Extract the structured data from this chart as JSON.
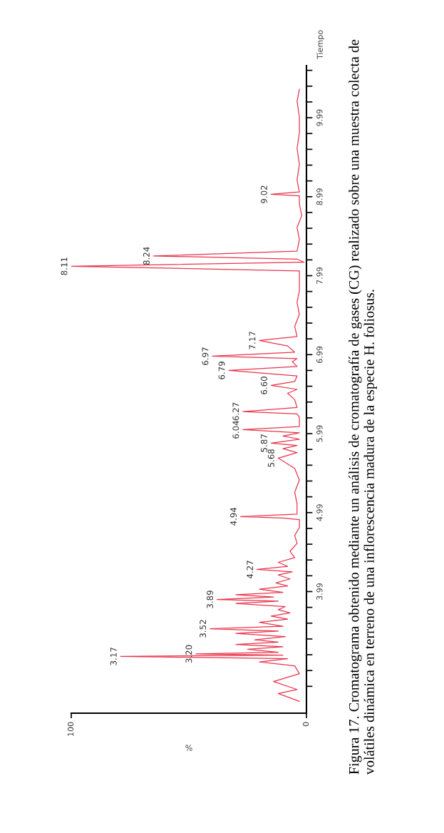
{
  "chart_data": {
    "type": "line",
    "orientation": "horizontal",
    "xlabel": "%",
    "ylabel": "Tiempo",
    "x": [
      2.6,
      2.7,
      2.75,
      2.85,
      2.95,
      3.05,
      3.1,
      3.14,
      3.17,
      3.185,
      3.2,
      3.22,
      3.26,
      3.29,
      3.32,
      3.35,
      3.38,
      3.42,
      3.46,
      3.49,
      3.52,
      3.55,
      3.6,
      3.64,
      3.68,
      3.72,
      3.76,
      3.8,
      3.84,
      3.87,
      3.89,
      3.92,
      3.95,
      3.98,
      4.02,
      4.06,
      4.1,
      4.15,
      4.2,
      4.24,
      4.27,
      4.31,
      4.36,
      4.42,
      4.5,
      4.6,
      4.7,
      4.8,
      4.9,
      4.92,
      4.94,
      4.97,
      5.1,
      5.25,
      5.4,
      5.55,
      5.68,
      5.75,
      5.8,
      5.84,
      5.87,
      5.92,
      5.96,
      6.0,
      6.04,
      6.08,
      6.12,
      6.2,
      6.24,
      6.27,
      6.32,
      6.42,
      6.5,
      6.55,
      6.6,
      6.65,
      6.72,
      6.79,
      6.84,
      6.9,
      6.94,
      6.97,
      7.02,
      7.1,
      7.17,
      7.22,
      7.35,
      7.5,
      7.65,
      7.8,
      7.95,
      8.05,
      8.11,
      8.16,
      8.2,
      8.24,
      8.3,
      8.45,
      8.6,
      8.75,
      8.9,
      9.0,
      9.02,
      9.05,
      9.2,
      9.4,
      9.6,
      9.8,
      10.0,
      10.2,
      10.35
    ],
    "series": [
      {
        "color": "#e8344c",
        "values": [
          3,
          12,
          4,
          14,
          3,
          5,
          20,
          8,
          79,
          10,
          47,
          12,
          25,
          10,
          30,
          12,
          22,
          9,
          30,
          12,
          41,
          10,
          20,
          8,
          15,
          7,
          12,
          9,
          30,
          12,
          38,
          14,
          30,
          10,
          20,
          8,
          13,
          7,
          12,
          6,
          21,
          8,
          12,
          5,
          7,
          4,
          5,
          3,
          3,
          10,
          28,
          4,
          4,
          5,
          3,
          5,
          12,
          4,
          10,
          4,
          15,
          3,
          10,
          3,
          27,
          3,
          3,
          3,
          4,
          27,
          4,
          5,
          8,
          4,
          15,
          5,
          4,
          33,
          4,
          6,
          4,
          40,
          5,
          8,
          20,
          4,
          5,
          3,
          4,
          3,
          3,
          3,
          100,
          1,
          4,
          65,
          4,
          3,
          4,
          2,
          3,
          3,
          15,
          3,
          4,
          3,
          4,
          3,
          3,
          4,
          3
        ]
      }
    ],
    "xlim": [
      100,
      0
    ],
    "xticks": [
      0,
      100
    ],
    "ylim": [
      2.45,
      10.65
    ],
    "yticks": [
      {
        "value": 2.79,
        "label": null
      },
      {
        "value": 2.99,
        "label": null
      },
      {
        "value": 3.19,
        "label": null
      },
      {
        "value": 3.39,
        "label": null
      },
      {
        "value": 3.59,
        "label": null
      },
      {
        "value": 3.79,
        "label": null
      },
      3.99,
      {
        "value": 4.19,
        "label": null
      },
      {
        "value": 4.39,
        "label": null
      },
      {
        "value": 4.59,
        "label": null
      },
      {
        "value": 4.79,
        "label": null
      },
      4.99,
      {
        "value": 5.19,
        "label": null
      },
      {
        "value": 5.39,
        "label": null
      },
      {
        "value": 5.59,
        "label": null
      },
      {
        "value": 5.79,
        "label": null
      },
      5.99,
      {
        "value": 6.19,
        "label": null
      },
      {
        "value": 6.39,
        "label": null
      },
      {
        "value": 6.59,
        "label": null
      },
      {
        "value": 6.79,
        "label": null
      },
      6.99,
      {
        "value": 7.19,
        "label": null
      },
      {
        "value": 7.39,
        "label": null
      },
      {
        "value": 7.59,
        "label": null
      },
      {
        "value": 7.79,
        "label": null
      },
      7.99,
      {
        "value": 8.19,
        "label": null
      },
      {
        "value": 8.39,
        "label": null
      },
      {
        "value": 8.59,
        "label": null
      },
      {
        "value": 8.79,
        "label": null
      },
      8.99,
      {
        "value": 9.19,
        "label": null
      },
      {
        "value": 9.39,
        "label": null
      },
      {
        "value": 9.59,
        "label": null
      },
      {
        "value": 9.79,
        "label": null
      },
      9.99,
      {
        "value": 10.19,
        "label": null
      },
      {
        "value": 10.39,
        "label": null
      },
      {
        "value": 10.59,
        "label": null
      }
    ],
    "marker": "none",
    "line_style": "solid",
    "annotations": [
      {
        "text": "3.17",
        "x": 79,
        "y": 3.17
      },
      {
        "text": "3.20",
        "x": 47,
        "y": 3.2
      },
      {
        "text": "3.52",
        "x": 41,
        "y": 3.52
      },
      {
        "text": "3.89",
        "x": 38,
        "y": 3.89
      },
      {
        "text": "4.27",
        "x": 21,
        "y": 4.27
      },
      {
        "text": "4.94",
        "x": 28,
        "y": 4.94
      },
      {
        "text": "5.68",
        "x": 12,
        "y": 5.68
      },
      {
        "text": "5.87",
        "x": 15,
        "y": 5.87
      },
      {
        "text": "6.04",
        "x": 27,
        "y": 6.04
      },
      {
        "text": "6.27",
        "x": 27,
        "y": 6.27
      },
      {
        "text": "6.60",
        "x": 15,
        "y": 6.6
      },
      {
        "text": "6.79",
        "x": 33,
        "y": 6.79
      },
      {
        "text": "6.97",
        "x": 40,
        "y": 6.97
      },
      {
        "text": "7.17",
        "x": 20,
        "y": 7.17
      },
      {
        "text": "8.11",
        "x": 100,
        "y": 8.11
      },
      {
        "text": "8.24",
        "x": 65,
        "y": 8.24
      },
      {
        "text": "9.02",
        "x": 15,
        "y": 9.02
      },
      "Figura 17. Cromatograma obtenido mediante un análisis de cromatografía de gases (CG) realizado sobre una muestra colecta de volátiles dinámica en terreno de una inflorescencia madura de la especie H. foliosus."
    ]
  }
}
